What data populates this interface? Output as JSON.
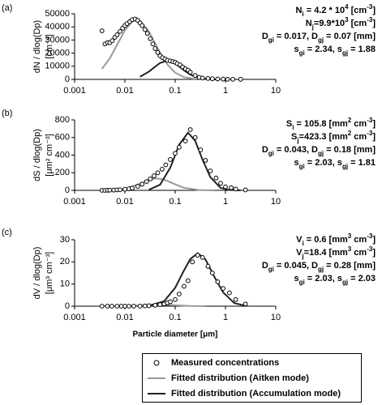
{
  "chart_data": [
    {
      "type": "line",
      "panel_label": "(a)",
      "xscale": "log",
      "xlim": [
        0.001,
        10
      ],
      "xticks": [
        0.001,
        0.01,
        0.1,
        1,
        10
      ],
      "ylim": [
        0,
        50000
      ],
      "yticks": [
        0,
        10000,
        20000,
        30000,
        40000,
        50000
      ],
      "ylabel": [
        "dN / dlog(Dp)",
        "[cm⁻³]"
      ],
      "annotations": [
        [
          {
            "text": "N"
          },
          {
            "text": "i",
            "shift": "sub"
          },
          {
            "text": " = 4.2 * 10"
          },
          {
            "text": "4",
            "shift": "super"
          },
          {
            "text": " [cm"
          },
          {
            "text": "-3",
            "shift": "super"
          },
          {
            "text": "]"
          }
        ],
        [
          {
            "text": "N"
          },
          {
            "text": "j",
            "shift": "sub"
          },
          {
            "text": "=9.9*10"
          },
          {
            "text": "3",
            "shift": "super"
          },
          {
            "text": " [cm"
          },
          {
            "text": "-3",
            "shift": "super"
          },
          {
            "text": "]"
          }
        ],
        [
          {
            "text": "D"
          },
          {
            "text": "gi",
            "shift": "sub"
          },
          {
            "text": " = 0.017, D"
          },
          {
            "text": "gj",
            "shift": "sub"
          },
          {
            "text": " = 0.07 [mm]"
          }
        ],
        [
          {
            "text": "s"
          },
          {
            "text": "gi",
            "shift": "sub"
          },
          {
            "text": " = 2.34, s"
          },
          {
            "text": "gj",
            "shift": "sub"
          },
          {
            "text": " = 1.88"
          }
        ]
      ],
      "series": [
        {
          "name": "Measured concentrations",
          "type": "scatter",
          "color": "#000000",
          "x": [
            0.0035,
            0.004,
            0.0045,
            0.005,
            0.0056,
            0.0063,
            0.007,
            0.008,
            0.009,
            0.01,
            0.011,
            0.0125,
            0.014,
            0.016,
            0.018,
            0.02,
            0.022,
            0.025,
            0.028,
            0.032,
            0.036,
            0.04,
            0.045,
            0.05,
            0.056,
            0.063,
            0.07,
            0.08,
            0.09,
            0.1,
            0.11,
            0.125,
            0.14,
            0.16,
            0.18,
            0.2,
            0.25,
            0.3,
            0.35,
            0.45,
            0.55,
            0.7,
            0.9,
            1.1,
            1.4,
            2
          ],
          "values": [
            37000,
            27000,
            28000,
            28000,
            29500,
            32000,
            34000,
            36500,
            39000,
            41000,
            42500,
            44000,
            45500,
            46000,
            45000,
            43000,
            41000,
            38000,
            35000,
            31000,
            27000,
            23500,
            20500,
            18000,
            16500,
            15500,
            14500,
            14000,
            13500,
            13000,
            12000,
            11000,
            9500,
            8000,
            7000,
            5500,
            3000,
            1500,
            1000,
            700,
            500,
            300,
            200,
            100,
            100,
            50
          ]
        },
        {
          "name": "Fitted distribution (Aitken mode)",
          "type": "line",
          "color": "#999999",
          "x": [
            0.0035,
            0.005,
            0.007,
            0.01,
            0.014,
            0.017,
            0.02,
            0.03,
            0.05,
            0.07,
            0.1,
            0.15,
            0.25
          ],
          "values": [
            8000,
            16000,
            26400,
            37400,
            44200,
            45400,
            44600,
            36300,
            20300,
            11300,
            5100,
            1700,
            300
          ]
        },
        {
          "name": "Fitted distribution (Accumulation mode)",
          "type": "line",
          "color": "#222222",
          "x": [
            0.02,
            0.03,
            0.04,
            0.05,
            0.07,
            0.1,
            0.15,
            0.2,
            0.3,
            0.5,
            0.7
          ],
          "values": [
            2000,
            5900,
            9700,
            12500,
            14400,
            12200,
            6900,
            3600,
            1000,
            110,
            0
          ]
        }
      ]
    },
    {
      "type": "line",
      "panel_label": "(b)",
      "xscale": "log",
      "xlim": [
        0.001,
        10
      ],
      "xticks": [
        0.001,
        0.01,
        0.1,
        1,
        10
      ],
      "ylim": [
        0,
        800
      ],
      "yticks": [
        0,
        200,
        400,
        600,
        800
      ],
      "ylabel": [
        "dS / dlog(Dp)",
        "[μm² cm⁻³]"
      ],
      "annotations": [
        [
          {
            "text": "S"
          },
          {
            "text": "i",
            "shift": "sub"
          },
          {
            "text": " = 105.8 [mm"
          },
          {
            "text": "2",
            "shift": "super"
          },
          {
            "text": " cm"
          },
          {
            "text": "-3",
            "shift": "super"
          },
          {
            "text": "]"
          }
        ],
        [
          {
            "text": "S"
          },
          {
            "text": "j",
            "shift": "sub"
          },
          {
            "text": "=423.3 [mm"
          },
          {
            "text": "2",
            "shift": "super"
          },
          {
            "text": " cm"
          },
          {
            "text": "-3",
            "shift": "super"
          },
          {
            "text": "]"
          }
        ],
        [
          {
            "text": "D"
          },
          {
            "text": "gi",
            "shift": "sub"
          },
          {
            "text": " = 0.043, D"
          },
          {
            "text": "gj",
            "shift": "sub"
          },
          {
            "text": " = 0.18 [mm]"
          }
        ],
        [
          {
            "text": "s"
          },
          {
            "text": "gi",
            "shift": "sub"
          },
          {
            "text": " = 2.03, s"
          },
          {
            "text": "gj",
            "shift": "sub"
          },
          {
            "text": " = 1.81"
          }
        ]
      ],
      "series": [
        {
          "type": "scatter",
          "color": "#000000",
          "x": [
            0.0035,
            0.004,
            0.0045,
            0.005,
            0.006,
            0.007,
            0.008,
            0.01,
            0.012,
            0.014,
            0.018,
            0.022,
            0.027,
            0.032,
            0.038,
            0.045,
            0.055,
            0.065,
            0.08,
            0.1,
            0.12,
            0.16,
            0.2,
            0.25,
            0.32,
            0.4,
            0.5,
            0.65,
            0.8,
            1.0,
            1.3,
            1.6,
            2.5
          ],
          "values": [
            0,
            0,
            1,
            2,
            3,
            5,
            7,
            12,
            18,
            25,
            45,
            70,
            100,
            130,
            165,
            200,
            240,
            290,
            350,
            420,
            490,
            560,
            690,
            600,
            460,
            340,
            220,
            140,
            80,
            40,
            30,
            15,
            5
          ]
        },
        {
          "type": "line",
          "color": "#999999",
          "x": [
            0.005,
            0.01,
            0.02,
            0.03,
            0.043,
            0.06,
            0.1,
            0.15,
            0.3,
            0.6
          ],
          "values": [
            1.4,
            16,
            77,
            120,
            137,
            122,
            68,
            29,
            3,
            0
          ]
        },
        {
          "type": "line",
          "color": "#222222",
          "x": [
            0.03,
            0.05,
            0.08,
            0.12,
            0.18,
            0.25,
            0.35,
            0.5,
            0.8,
            1.2,
            2
          ],
          "values": [
            7,
            64,
            258,
            518,
            655,
            562,
            348,
            150,
            28,
            4,
            0
          ]
        }
      ]
    },
    {
      "type": "line",
      "panel_label": "(c)",
      "xscale": "log",
      "xlim": [
        0.001,
        10
      ],
      "xticks": [
        0.001,
        0.01,
        0.1,
        1,
        10
      ],
      "xlabel": "Particle diameter [μm]",
      "ylim": [
        0,
        30
      ],
      "yticks": [
        0,
        10,
        20,
        30
      ],
      "ylabel": [
        "dV / dlog(Dp)",
        "[μm³ cm⁻³]"
      ],
      "annotations": [
        [
          {
            "text": "V"
          },
          {
            "text": "i",
            "shift": "sub"
          },
          {
            "text": " = 0.6 [mm"
          },
          {
            "text": "3",
            "shift": "super"
          },
          {
            "text": " cm"
          },
          {
            "text": "-3",
            "shift": "super"
          },
          {
            "text": "]"
          }
        ],
        [
          {
            "text": "V"
          },
          {
            "text": "j",
            "shift": "sub"
          },
          {
            "text": "=18.4 [mm"
          },
          {
            "text": "3",
            "shift": "super"
          },
          {
            "text": " cm"
          },
          {
            "text": "-3",
            "shift": "super"
          },
          {
            "text": "]"
          }
        ],
        [
          {
            "text": "D"
          },
          {
            "text": "gi",
            "shift": "sub"
          },
          {
            "text": " = 0.045, D"
          },
          {
            "text": "gj",
            "shift": "sub"
          },
          {
            "text": " = 0.28 [mm]"
          }
        ],
        [
          {
            "text": "s"
          },
          {
            "text": "gi",
            "shift": "sub"
          },
          {
            "text": " = 2.03, s"
          },
          {
            "text": "gj",
            "shift": "sub"
          },
          {
            "text": " = 2.03"
          }
        ]
      ],
      "series": [
        {
          "type": "scatter",
          "color": "#000000",
          "x": [
            0.0035,
            0.0045,
            0.0055,
            0.007,
            0.0085,
            0.01,
            0.012,
            0.015,
            0.02,
            0.025,
            0.03,
            0.04,
            0.05,
            0.06,
            0.07,
            0.08,
            0.1,
            0.12,
            0.15,
            0.18,
            0.22,
            0.28,
            0.35,
            0.45,
            0.55,
            0.7,
            0.9,
            1.2,
            1.6,
            2.5
          ],
          "values": [
            0,
            0,
            0,
            0,
            0,
            0,
            0,
            0,
            0,
            0.1,
            0.2,
            0.4,
            0.7,
            1,
            1.5,
            2,
            3,
            5.5,
            9,
            11.5,
            20,
            23,
            22,
            18,
            15,
            11,
            8,
            6,
            3,
            1
          ]
        },
        {
          "type": "line",
          "color": "#999999",
          "x": [
            0.01,
            0.02,
            0.045,
            0.1,
            0.2,
            0.4
          ],
          "values": [
            0.08,
            0.4,
            0.78,
            0.41,
            0.09,
            0
          ]
        },
        {
          "type": "line",
          "color": "#222222",
          "x": [
            0.03,
            0.06,
            0.1,
            0.15,
            0.2,
            0.28,
            0.4,
            0.6,
            0.9,
            1.5,
            2.5
          ],
          "values": [
            0.2,
            2.2,
            8.3,
            16.2,
            21.3,
            23.9,
            21.1,
            13.3,
            6.2,
            1.4,
            0.2
          ]
        }
      ]
    }
  ]
}
